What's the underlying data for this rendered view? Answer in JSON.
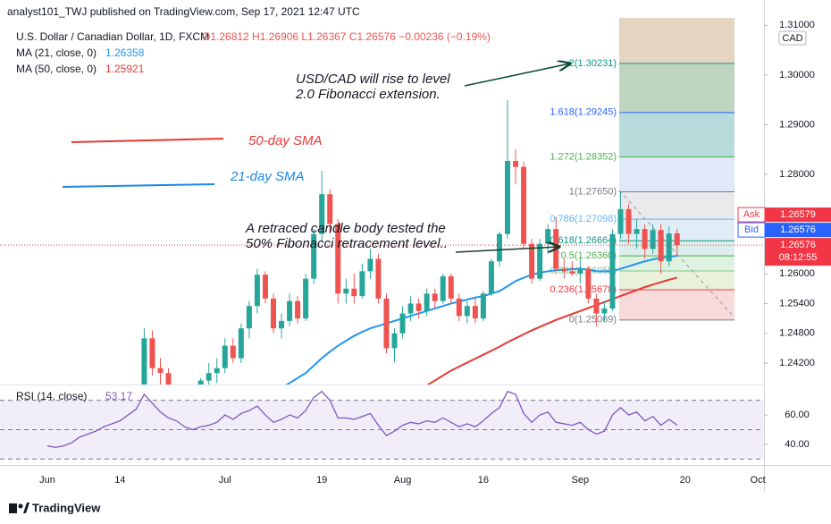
{
  "header": {
    "published": "analyst101_TWJ published on TradingView.com, Sep 17, 2021 12:47 UTC"
  },
  "footer": {
    "brand": "TradingView"
  },
  "annotations": {
    "extension": [
      "USD/CAD will rise to level",
      "2.0 Fibonacci extension."
    ],
    "sma50": "50-day SMA",
    "sma21": "21-day SMA",
    "retrace": [
      "A retraced candle body tested the",
      "50% Fibonacci retracement level.."
    ]
  },
  "chart_data": [
    {
      "type": "candlestick",
      "title": "U.S. Dollar / Canadian Dollar, 1D, FXCM",
      "ohlc_legend": "O1.26812 H1.26906 L1.26367 C1.26576 −0.00236 (−0.19%)",
      "currency": "CAD",
      "up_color": "#26a69a",
      "down_color": "#ef5350",
      "ylim": [
        1.2377,
        1.3115
      ],
      "yticks": [
        {
          "value": 1.31,
          "label": "1.31000"
        },
        {
          "value": 1.3,
          "label": "1.30000"
        },
        {
          "value": 1.29,
          "label": "1.29000"
        },
        {
          "value": 1.28,
          "label": "1.28000"
        },
        {
          "value": 1.26,
          "label": "1.26000"
        },
        {
          "value": 1.254,
          "label": "1.25400"
        },
        {
          "value": 1.248,
          "label": "1.24800"
        },
        {
          "value": 1.242,
          "label": "1.24200"
        }
      ],
      "categories": [
        "Jun",
        null,
        null,
        null,
        null,
        null,
        null,
        null,
        null,
        "14",
        null,
        null,
        null,
        null,
        null,
        null,
        null,
        null,
        null,
        null,
        null,
        null,
        "Jul",
        null,
        null,
        null,
        null,
        null,
        null,
        null,
        null,
        null,
        null,
        null,
        "19",
        null,
        null,
        null,
        null,
        null,
        null,
        null,
        null,
        null,
        "Aug",
        null,
        null,
        null,
        null,
        null,
        null,
        null,
        null,
        null,
        "16",
        null,
        null,
        null,
        null,
        null,
        null,
        null,
        null,
        null,
        null,
        null,
        "Sep",
        null,
        null,
        null,
        null,
        null,
        null,
        null,
        null,
        null,
        null,
        null,
        null,
        "20",
        null,
        null,
        null,
        null,
        null,
        null,
        null,
        null,
        "Oct"
      ],
      "open": [
        null,
        null,
        null,
        null,
        null,
        null,
        null,
        null,
        null,
        null,
        null,
        null,
        1.236,
        1.247,
        1.241,
        1.24,
        1.235,
        1.232,
        1.23,
        1.234,
        1.2385,
        1.24,
        1.241,
        1.2455,
        1.243,
        1.249,
        1.2535,
        1.2598,
        1.255,
        1.249,
        1.2505,
        1.2545,
        1.251,
        1.259,
        1.268,
        1.276,
        1.27,
        1.256,
        1.257,
        1.2555,
        1.2605,
        1.263,
        1.255,
        1.245,
        1.248,
        1.252,
        1.254,
        1.2525,
        1.256,
        1.2545,
        1.2595,
        1.255,
        1.2515,
        1.2535,
        1.251,
        1.256,
        1.2625,
        1.268,
        1.2827,
        1.2815,
        1.266,
        1.259,
        1.266,
        1.269,
        1.261,
        1.2605,
        1.26,
        1.261,
        1.255,
        1.252,
        1.253,
        1.268,
        1.273,
        1.268,
        1.269,
        1.265,
        1.2688,
        1.2625,
        1.26812,
        null,
        null,
        null,
        null,
        null,
        null,
        null,
        null,
        null,
        null
      ],
      "high": [
        null,
        null,
        null,
        null,
        null,
        null,
        null,
        null,
        null,
        null,
        null,
        null,
        1.249,
        1.2486,
        1.243,
        1.241,
        1.237,
        1.234,
        1.235,
        1.239,
        1.242,
        1.243,
        1.247,
        1.247,
        1.25,
        1.2545,
        1.261,
        1.2605,
        1.256,
        1.252,
        1.256,
        1.2555,
        1.26,
        1.269,
        1.2807,
        1.277,
        1.271,
        1.259,
        1.26,
        1.262,
        1.265,
        1.264,
        1.256,
        1.249,
        1.2535,
        1.2555,
        1.255,
        1.257,
        1.257,
        1.26,
        1.26,
        1.256,
        1.2545,
        1.255,
        1.2565,
        1.263,
        1.2685,
        1.2949,
        1.285,
        1.2825,
        1.267,
        1.267,
        1.27,
        1.2715,
        1.263,
        1.2625,
        1.263,
        1.2615,
        1.256,
        1.2545,
        1.269,
        1.2765,
        1.274,
        1.271,
        1.27,
        1.27,
        1.27,
        1.2695,
        1.26906,
        null,
        null,
        null,
        null,
        null,
        null,
        null,
        null,
        null,
        null
      ],
      "low": [
        null,
        null,
        null,
        null,
        null,
        null,
        null,
        null,
        null,
        null,
        null,
        null,
        1.235,
        1.2395,
        1.237,
        1.233,
        1.23,
        1.226,
        1.228,
        1.233,
        1.237,
        1.238,
        1.24,
        1.242,
        1.242,
        1.247,
        1.252,
        1.254,
        1.248,
        1.247,
        1.2495,
        1.25,
        1.2505,
        1.258,
        1.2665,
        1.268,
        1.254,
        1.254,
        1.254,
        1.255,
        1.259,
        1.254,
        1.244,
        1.2422,
        1.247,
        1.2505,
        1.251,
        1.2515,
        1.253,
        1.254,
        1.254,
        1.2505,
        1.25,
        1.25,
        1.2505,
        1.2555,
        1.2615,
        1.267,
        1.278,
        1.265,
        1.258,
        1.2585,
        1.264,
        1.26,
        1.259,
        1.2595,
        1.258,
        1.254,
        1.2494,
        1.2505,
        1.2525,
        1.267,
        1.266,
        1.265,
        1.263,
        1.264,
        1.26,
        1.2615,
        1.26367,
        null,
        null,
        null,
        null,
        null,
        null,
        null,
        null,
        null,
        null
      ],
      "close": [
        null,
        null,
        null,
        null,
        null,
        null,
        null,
        null,
        null,
        null,
        null,
        null,
        1.247,
        1.241,
        1.24,
        1.235,
        1.232,
        1.23,
        1.234,
        1.2385,
        1.24,
        1.241,
        1.2455,
        1.243,
        1.249,
        1.2535,
        1.2598,
        1.255,
        1.249,
        1.2505,
        1.2545,
        1.251,
        1.259,
        1.268,
        1.276,
        1.27,
        1.256,
        1.257,
        1.2555,
        1.2605,
        1.263,
        1.255,
        1.245,
        1.248,
        1.252,
        1.254,
        1.2525,
        1.256,
        1.2545,
        1.2595,
        1.255,
        1.2515,
        1.2535,
        1.251,
        1.256,
        1.2625,
        1.268,
        1.2827,
        1.2815,
        1.266,
        1.259,
        1.266,
        1.269,
        1.261,
        1.2605,
        1.26,
        1.261,
        1.255,
        1.252,
        1.253,
        1.268,
        1.273,
        1.268,
        1.269,
        1.265,
        1.2688,
        1.2625,
        1.2681,
        1.26576,
        null,
        null,
        null,
        null,
        null,
        null,
        null,
        null,
        null,
        null
      ],
      "lines": [
        {
          "name": "MA (21, close, 0)",
          "last": 1.26358,
          "color": "#2196f3",
          "values": [
            null,
            null,
            null,
            null,
            null,
            null,
            null,
            null,
            null,
            null,
            null,
            null,
            null,
            null,
            null,
            null,
            null,
            null,
            null,
            null,
            null,
            null,
            null,
            null,
            null,
            null,
            null,
            null,
            1.236,
            1.237,
            1.238,
            1.239,
            1.24,
            1.2415,
            1.243,
            1.2443,
            1.2455,
            1.2465,
            1.2475,
            1.2483,
            1.249,
            1.2495,
            1.25,
            1.2505,
            1.251,
            1.2515,
            1.252,
            1.2525,
            1.253,
            1.2535,
            1.254,
            1.2544,
            1.2548,
            1.2552,
            1.2555,
            1.256,
            1.2565,
            1.2575,
            1.2585,
            1.2592,
            1.2598,
            1.2602,
            1.2605,
            1.2607,
            1.2608,
            1.2609,
            1.261,
            1.2608,
            1.2605,
            1.2605,
            1.2605,
            1.261,
            1.2615,
            1.262,
            1.2625,
            1.2629,
            1.2632,
            1.2634,
            1.2636,
            null,
            null,
            null,
            null,
            null,
            null,
            null,
            null,
            null,
            null
          ]
        },
        {
          "name": "MA (50, close, 0)",
          "last": 1.25921,
          "color": "#e53935",
          "values": [
            null,
            null,
            null,
            null,
            null,
            null,
            null,
            null,
            null,
            null,
            null,
            null,
            null,
            null,
            null,
            null,
            null,
            null,
            null,
            null,
            null,
            null,
            null,
            null,
            null,
            null,
            null,
            null,
            null,
            null,
            null,
            null,
            null,
            null,
            null,
            null,
            null,
            null,
            null,
            null,
            null,
            null,
            null,
            null,
            null,
            null,
            null,
            1.2375,
            1.2385,
            1.2395,
            1.2405,
            1.2413,
            1.2421,
            1.2429,
            1.2437,
            1.2445,
            1.2453,
            1.2462,
            1.247,
            1.2478,
            1.2486,
            1.2493,
            1.25,
            1.2507,
            1.2513,
            1.2519,
            1.2525,
            1.2531,
            1.2537,
            1.2543,
            1.2549,
            1.2555,
            1.2561,
            1.2567,
            1.2573,
            1.2578,
            1.2583,
            1.2588,
            1.2592,
            null,
            null,
            null,
            null,
            null,
            null,
            null,
            null,
            null,
            null
          ]
        }
      ],
      "fibonacci": [
        {
          "label": "0(1.25069)",
          "price": 1.25069,
          "color": "#787b86",
          "fill": "#f7cdcd"
        },
        {
          "label": "0.236(1.25678)",
          "price": 1.25678,
          "color": "#f23645",
          "fill": "#dfeccf"
        },
        {
          "label": "0.382(1.26055)",
          "price": 1.26055,
          "color": "#81c784",
          "fill": "#d4ecd6"
        },
        {
          "label": "0.5(1.26360)",
          "price": 1.2636,
          "color": "#4caf50",
          "fill": "#cfe8e4"
        },
        {
          "label": "0.618(1.26664)",
          "price": 1.26664,
          "color": "#089981",
          "fill": "#d6e7f3"
        },
        {
          "label": "0.786(1.27098)",
          "price": 1.27098,
          "color": "#64b5f6",
          "fill": "#e3e3e6"
        },
        {
          "label": "1(1.27650)",
          "price": 1.2765,
          "color": "#787b86",
          "fill": "#d6e2f5"
        },
        {
          "label": "1.272(1.28352)",
          "price": 1.28352,
          "color": "#4caf50",
          "fill": "#9fcfce"
        },
        {
          "label": "1.618(1.29245)",
          "price": 1.29245,
          "color": "#2962ff",
          "fill": "#abc7ab"
        },
        {
          "label": "2(1.30231)",
          "price": 1.30231,
          "color": "#089981",
          "fill": "#dbc6ab"
        }
      ],
      "price_labels": [
        {
          "label": "Ask",
          "value": 1.26579,
          "color": "#f23645"
        },
        {
          "label": "Bid",
          "value": 1.26576,
          "color": "#2962ff"
        },
        {
          "value": 1.26576,
          "countdown": "08:12:55",
          "color": "#f23645"
        }
      ]
    },
    {
      "type": "line",
      "title": "RSI (14, close)",
      "ylim": [
        26,
        79.5
      ],
      "yticks": [
        {
          "value": 40,
          "label": "40.00"
        },
        {
          "value": 60,
          "label": "60.00"
        }
      ],
      "levels": [
        70,
        50,
        30
      ],
      "series": [
        {
          "name": "RSI",
          "color": "#7e57c2",
          "values": [
            39,
            38,
            39,
            41,
            45,
            47,
            49,
            52,
            54,
            56,
            60,
            64,
            74,
            68,
            62,
            58,
            56,
            52,
            50,
            52,
            53,
            55,
            60,
            57,
            61,
            63,
            66,
            60,
            55,
            57,
            60,
            58,
            63,
            72,
            76,
            70,
            58,
            58,
            57,
            59,
            61,
            53,
            46,
            49,
            53,
            55,
            54,
            56,
            55,
            58,
            55,
            52,
            54,
            52,
            56,
            61,
            65,
            76,
            74,
            61,
            55,
            60,
            62,
            55,
            54,
            53,
            55,
            50,
            47,
            49,
            60,
            65,
            60,
            62,
            56,
            59,
            53,
            57,
            53.17,
            null,
            null,
            null,
            null,
            null,
            null,
            null,
            null,
            null,
            null
          ]
        }
      ]
    }
  ]
}
